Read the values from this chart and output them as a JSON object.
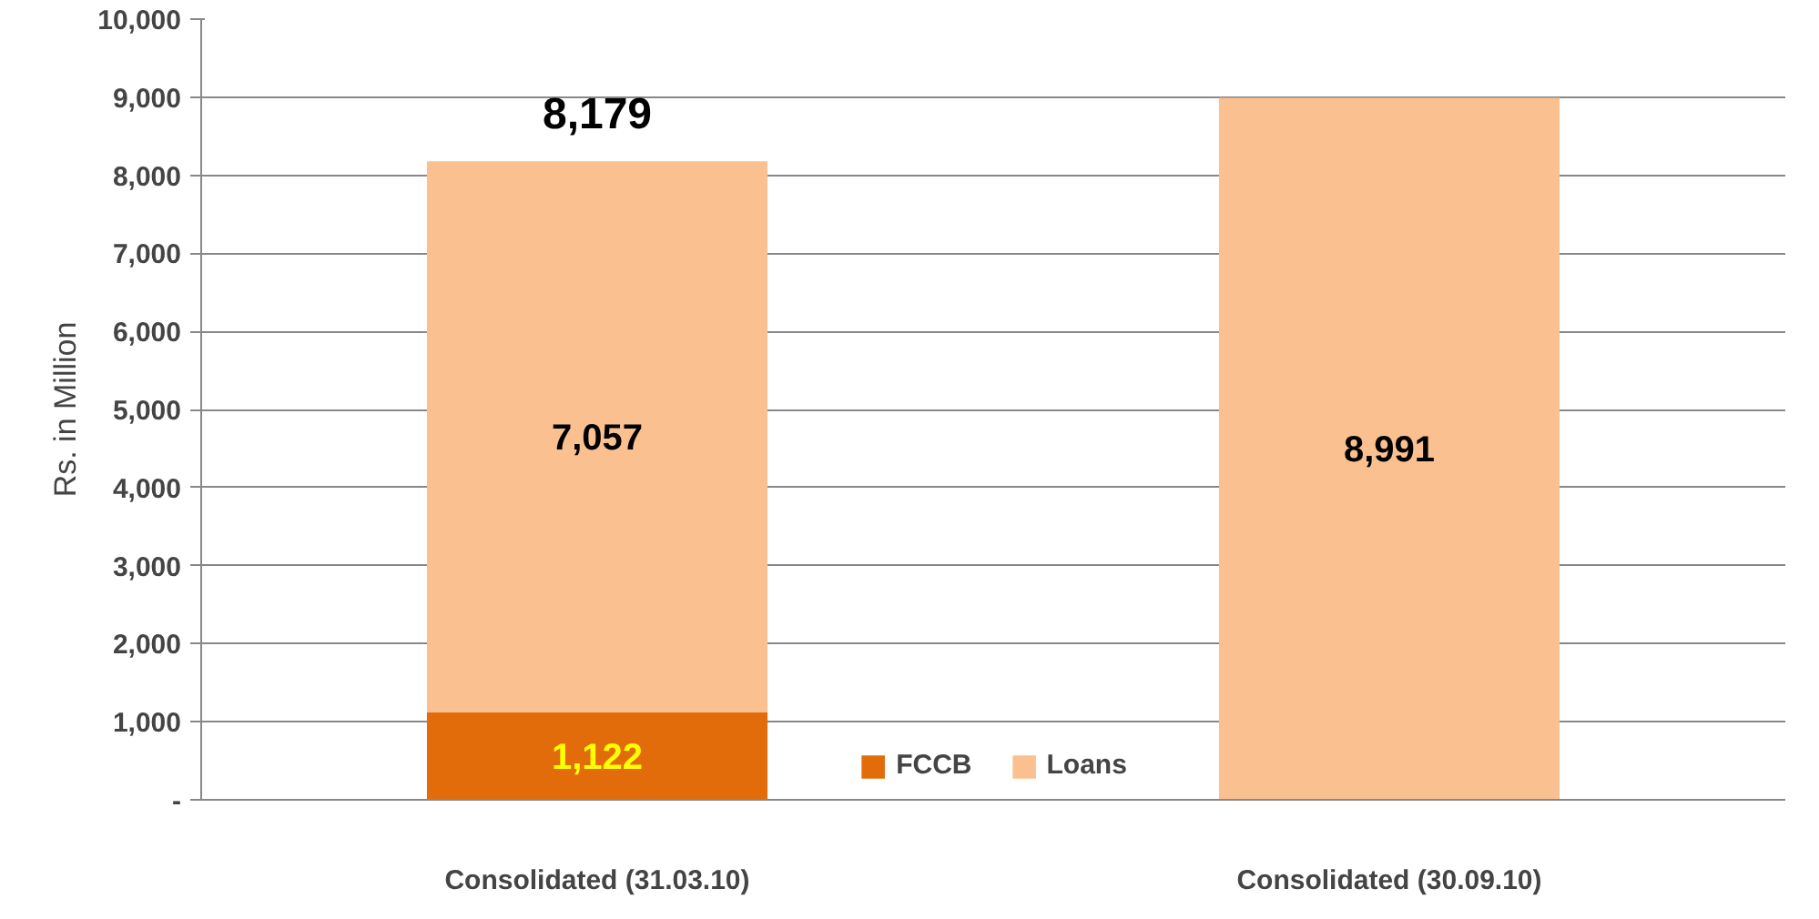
{
  "chart_data": {
    "type": "bar",
    "stacked": true,
    "ylabel": "Rs. in Million",
    "categories": [
      "Consolidated (31.03.10)",
      "Consolidated (30.09.10)"
    ],
    "series": [
      {
        "name": "FCCB",
        "color": "#e36c0a",
        "values": [
          1122,
          null
        ],
        "value_labels": [
          "1,122",
          null
        ]
      },
      {
        "name": "Loans",
        "color": "#fac090",
        "values": [
          7057,
          8991
        ],
        "value_labels": [
          "7,057",
          "8,991"
        ]
      }
    ],
    "totals": [
      "8,179",
      null
    ],
    "ylim": [
      0,
      10000
    ],
    "yticks": [
      {
        "value": 0,
        "label": "-"
      },
      {
        "value": 1000,
        "label": "1,000"
      },
      {
        "value": 2000,
        "label": "2,000"
      },
      {
        "value": 3000,
        "label": "3,000"
      },
      {
        "value": 4000,
        "label": "4,000"
      },
      {
        "value": 5000,
        "label": "5,000"
      },
      {
        "value": 6000,
        "label": "6,000"
      },
      {
        "value": 7000,
        "label": "7,000"
      },
      {
        "value": 8000,
        "label": "8,000"
      },
      {
        "value": 9000,
        "label": "9,000"
      },
      {
        "value": 10000,
        "label": "10,000"
      }
    ],
    "grid": "y",
    "legend": "bottom"
  }
}
